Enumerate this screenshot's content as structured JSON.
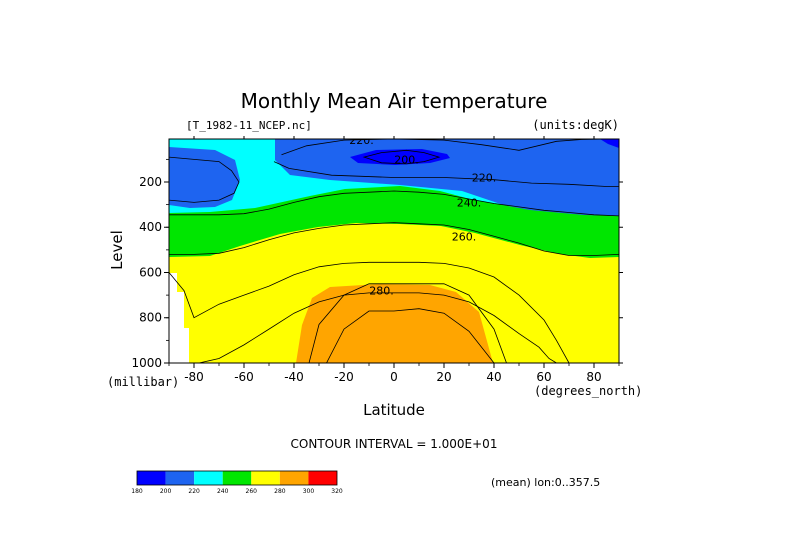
{
  "chart_data": {
    "type": "contour",
    "title": "Monthly Mean Air temperature",
    "source_label": "[T_1982-11_NCEP.nc]",
    "units_label": "(units:degK)",
    "xlabel": "Latitude",
    "x_units_label": "(degrees_north)",
    "ylabel": "Level",
    "y_units_label": "(millibar)",
    "xlim": [
      -90,
      90
    ],
    "ylim": [
      1000,
      10
    ],
    "x_ticks": [
      -80,
      -60,
      -40,
      -20,
      0,
      20,
      40,
      60,
      80
    ],
    "x_tick_labels": [
      "-80",
      "-60",
      "-40",
      "-20",
      "0",
      "20",
      "40",
      "60",
      "80"
    ],
    "y_ticks": [
      200,
      400,
      600,
      800,
      1000
    ],
    "y_tick_labels": [
      "200",
      "400",
      "600",
      "800",
      "1000"
    ],
    "contour_interval_text": "CONTOUR INTERVAL = 1.000E+01",
    "averaging_text": "(mean) lon:0..357.5",
    "contour_labels": [
      {
        "text": "220.",
        "lat": -13,
        "level": 15
      },
      {
        "text": "200.",
        "lat": 5,
        "level": 100
      },
      {
        "text": "220.",
        "lat": 36,
        "level": 180
      },
      {
        "text": "240.",
        "lat": 30,
        "level": 290
      },
      {
        "text": "260.",
        "lat": 28,
        "level": 440
      },
      {
        "text": "280.",
        "lat": -5,
        "level": 680
      }
    ],
    "levels": [
      180,
      200,
      220,
      240,
      260,
      280,
      300,
      320
    ],
    "level_labels": [
      "180",
      "200",
      "220",
      "240",
      "260",
      "280",
      "300",
      "320"
    ],
    "fill_colors": [
      "#0000ff",
      "#1e64f0",
      "#00ffff",
      "#00e600",
      "#ffff00",
      "#ffa500",
      "#ff0000"
    ],
    "boundaries": [
      {
        "value": 200,
        "lat": [
          -12,
          -5,
          5,
          12,
          18,
          12,
          5,
          -5,
          -12
        ],
        "level": [
          90,
          70,
          60,
          70,
          90,
          110,
          120,
          115,
          90
        ],
        "closed": true
      },
      {
        "value": 220,
        "lat": [
          -90,
          -80,
          -70,
          -65,
          -62,
          -64,
          -70,
          -80,
          -90
        ],
        "level": [
          90,
          100,
          110,
          150,
          200,
          250,
          280,
          290,
          280
        ],
        "closed": true
      },
      {
        "value": 220,
        "lat": [
          -45,
          -35,
          -20,
          0,
          20,
          35,
          50,
          65,
          75,
          85,
          90
        ],
        "level": [
          80,
          40,
          15,
          10,
          15,
          35,
          60,
          20,
          12,
          10,
          10
        ],
        "closed": false
      },
      {
        "value": 220,
        "lat": [
          -48,
          -42,
          -25,
          0,
          20,
          40,
          55,
          70,
          85,
          90
        ],
        "level": [
          110,
          140,
          170,
          180,
          180,
          190,
          205,
          210,
          220,
          220
        ],
        "closed": false
      },
      {
        "value": 240,
        "lat": [
          -90,
          -80,
          -70,
          -60,
          -50,
          -40,
          -30,
          -20,
          -10,
          0,
          10,
          20,
          30,
          40,
          50,
          60,
          70,
          80,
          90
        ],
        "level": [
          345,
          345,
          345,
          340,
          320,
          290,
          265,
          250,
          245,
          240,
          245,
          255,
          275,
          295,
          310,
          325,
          335,
          345,
          350
        ],
        "closed": false
      },
      {
        "value": 260,
        "lat": [
          -90,
          -80,
          -70,
          -60,
          -50,
          -40,
          -30,
          -20,
          -10,
          0,
          10,
          20,
          30,
          40,
          50,
          60,
          70,
          80,
          90
        ],
        "level": [
          520,
          520,
          515,
          490,
          455,
          425,
          405,
          390,
          385,
          380,
          385,
          390,
          410,
          440,
          470,
          505,
          525,
          525,
          520
        ],
        "closed": false
      },
      {
        "value": 280,
        "lat": [
          -90,
          -84,
          -80,
          -70,
          -60,
          -50,
          -40,
          -30,
          -20,
          -10,
          0,
          10,
          20,
          30,
          40,
          50,
          60,
          65,
          70,
          80,
          90
        ],
        "level": [
          600,
          680,
          800,
          740,
          700,
          660,
          610,
          575,
          560,
          555,
          555,
          555,
          560,
          580,
          620,
          700,
          810,
          900,
          1000,
          1000,
          1000
        ],
        "closed": false
      },
      {
        "value": 290,
        "lat": [
          -78,
          -70,
          -60,
          -50,
          -40,
          -30,
          -20,
          -10,
          0,
          10,
          20,
          30,
          40,
          50,
          58,
          62,
          65
        ],
        "level": [
          1000,
          980,
          920,
          850,
          780,
          730,
          700,
          690,
          690,
          690,
          700,
          730,
          790,
          870,
          930,
          980,
          1000
        ],
        "closed": false
      },
      {
        "value": 280,
        "lat": [
          -34,
          -30,
          -20,
          -10,
          0,
          10,
          20,
          30,
          40,
          45
        ],
        "level": [
          1000,
          830,
          700,
          650,
          650,
          650,
          650,
          700,
          850,
          1000
        ],
        "closed": false
      },
      {
        "value": 285,
        "lat": [
          -27,
          -20,
          -10,
          0,
          10,
          20,
          30,
          40
        ],
        "level": [
          1000,
          850,
          770,
          770,
          760,
          780,
          860,
          1000
        ],
        "closed": false
      }
    ]
  }
}
